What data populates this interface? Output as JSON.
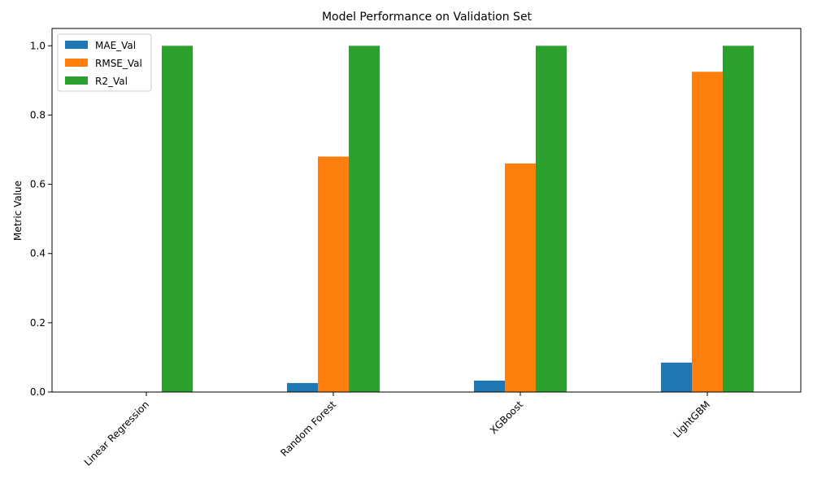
{
  "chart_data": {
    "type": "bar",
    "title": "Model Performance on Validation Set",
    "xlabel": "",
    "ylabel": "Metric Value",
    "categories": [
      "Linear Regression",
      "Random Forest",
      "XGBoost",
      "LightGBM"
    ],
    "series": [
      {
        "name": "MAE_Val",
        "color": "#1f77b4",
        "values": [
          0.0,
          0.026,
          0.033,
          0.085
        ]
      },
      {
        "name": "RMSE_Val",
        "color": "#ff7f0e",
        "values": [
          0.0,
          0.68,
          0.66,
          0.925
        ]
      },
      {
        "name": "R2_Val",
        "color": "#2ca02c",
        "values": [
          1.0,
          1.0,
          1.0,
          1.0
        ]
      }
    ],
    "ylim": [
      0,
      1.05
    ],
    "yticks": [
      "0.0",
      "0.2",
      "0.4",
      "0.6",
      "0.8",
      "1.0"
    ],
    "legend_position": "top-left",
    "grid": false
  }
}
